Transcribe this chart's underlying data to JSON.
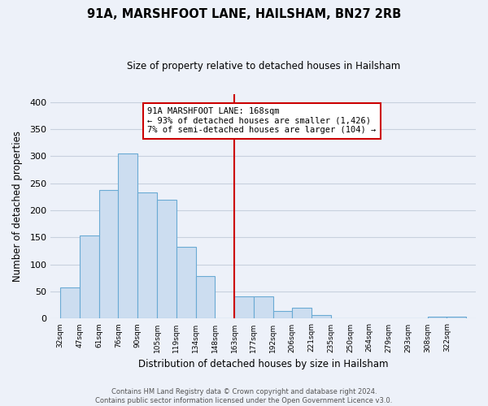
{
  "title": "91A, MARSHFOOT LANE, HAILSHAM, BN27 2RB",
  "subtitle": "Size of property relative to detached houses in Hailsham",
  "xlabel": "Distribution of detached houses by size in Hailsham",
  "ylabel": "Number of detached properties",
  "tick_labels": [
    "32sqm",
    "47sqm",
    "61sqm",
    "76sqm",
    "90sqm",
    "105sqm",
    "119sqm",
    "134sqm",
    "148sqm",
    "163sqm",
    "177sqm",
    "192sqm",
    "206sqm",
    "221sqm",
    "235sqm",
    "250sqm",
    "264sqm",
    "279sqm",
    "293sqm",
    "308sqm",
    "322sqm"
  ],
  "tick_positions": [
    0,
    1,
    2,
    3,
    4,
    5,
    6,
    7,
    8,
    9,
    10,
    11,
    12,
    13,
    14,
    15,
    16,
    17,
    18,
    19,
    20
  ],
  "bar_values": [
    57,
    154,
    237,
    305,
    233,
    220,
    133,
    78,
    0,
    41,
    41,
    14,
    20,
    6,
    0,
    0,
    0,
    0,
    0,
    4,
    4
  ],
  "bar_color": "#ccddf0",
  "bar_edge_color": "#6aaad4",
  "vline_x": 9.0,
  "vline_color": "#cc0000",
  "annotation_lines": [
    "91A MARSHFOOT LANE: 168sqm",
    "← 93% of detached houses are smaller (1,426)",
    "7% of semi-detached houses are larger (104) →"
  ],
  "annotation_box_color": "#ffffff",
  "annotation_box_edge": "#cc0000",
  "ylim": [
    0,
    415
  ],
  "yticks": [
    0,
    50,
    100,
    150,
    200,
    250,
    300,
    350,
    400
  ],
  "grid_color": "#c8d0de",
  "background_color": "#edf1f9",
  "footer_line1": "Contains HM Land Registry data © Crown copyright and database right 2024.",
  "footer_line2": "Contains public sector information licensed under the Open Government Licence v3.0."
}
